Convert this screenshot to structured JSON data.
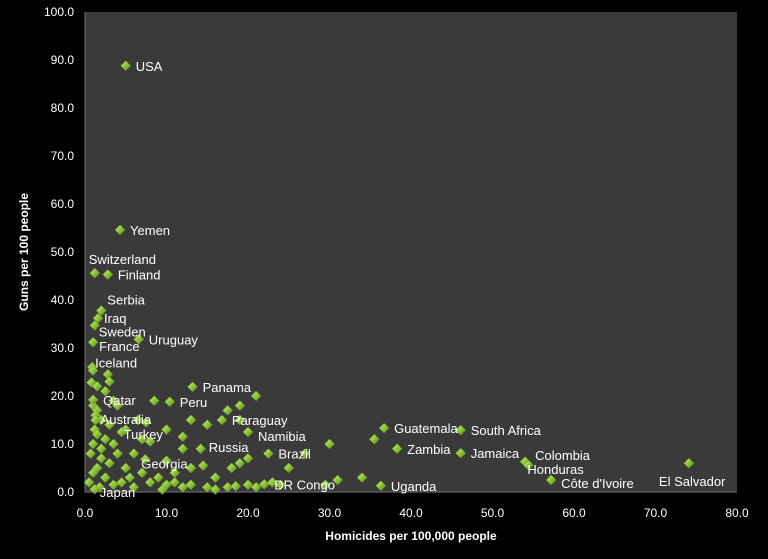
{
  "chart_data": {
    "type": "scatter",
    "title": "",
    "xlabel": "Homicides per 100,000 people",
    "ylabel": "Guns per 100 people",
    "xlim": [
      0,
      80
    ],
    "ylim": [
      0,
      100
    ],
    "xticks": [
      "0.0",
      "10.0",
      "20.0",
      "30.0",
      "40.0",
      "50.0",
      "60.0",
      "70.0",
      "80.0"
    ],
    "yticks": [
      "0.0",
      "10.0",
      "20.0",
      "30.0",
      "40.0",
      "50.0",
      "60.0",
      "70.0",
      "80.0",
      "90.0",
      "100.0"
    ],
    "grid": false,
    "colors": {
      "marker": "#8fc63a",
      "marker_dark": "#5a8a1a",
      "plot_bg": "#3a3a3a",
      "outer_bg": "#000000"
    },
    "labeled_points": [
      {
        "label": "USA",
        "x": 5.0,
        "y": 88.8
      },
      {
        "label": "Yemen",
        "x": 4.3,
        "y": 54.6
      },
      {
        "label": "Switzerland",
        "x": 1.2,
        "y": 45.6
      },
      {
        "label": "Finland",
        "x": 2.8,
        "y": 45.3
      },
      {
        "label": "Serbia",
        "x": 2.0,
        "y": 37.8
      },
      {
        "label": "Iraq",
        "x": 1.6,
        "y": 36.2
      },
      {
        "label": "Sweden",
        "x": 1.2,
        "y": 34.7
      },
      {
        "label": "France",
        "x": 1.0,
        "y": 31.2
      },
      {
        "label": "Uruguay",
        "x": 6.6,
        "y": 31.8
      },
      {
        "label": "Iceland",
        "x": 1.0,
        "y": 25.3
      },
      {
        "label": "Qatar",
        "x": 1.0,
        "y": 19.2
      },
      {
        "label": "Australia",
        "x": 1.3,
        "y": 15.0
      },
      {
        "label": "Turkey",
        "x": 4.5,
        "y": 12.5
      },
      {
        "label": "Panama",
        "x": 13.2,
        "y": 21.9
      },
      {
        "label": "Peru",
        "x": 10.4,
        "y": 18.8
      },
      {
        "label": "Paraguay",
        "x": 16.8,
        "y": 15.0
      },
      {
        "label": "Namibia",
        "x": 20.0,
        "y": 12.5
      },
      {
        "label": "Russia",
        "x": 14.2,
        "y": 9.0
      },
      {
        "label": "Georgia",
        "x": 7.4,
        "y": 6.8
      },
      {
        "label": "Brazil",
        "x": 22.5,
        "y": 8.0
      },
      {
        "label": "DR Congo",
        "x": 22.0,
        "y": 1.6
      },
      {
        "label": "Guatemala",
        "x": 36.7,
        "y": 13.3
      },
      {
        "label": "South Africa",
        "x": 46.1,
        "y": 12.9
      },
      {
        "label": "Zambia",
        "x": 38.3,
        "y": 9.0
      },
      {
        "label": "Jamaica",
        "x": 46.1,
        "y": 8.1
      },
      {
        "label": "Colombia",
        "x": 54.0,
        "y": 6.3
      },
      {
        "label": "Honduras",
        "x": 54.4,
        "y": 5.6
      },
      {
        "label": "Côte d'Ivoire",
        "x": 57.2,
        "y": 2.5
      },
      {
        "label": "El Salvador",
        "x": 74.1,
        "y": 6.0
      },
      {
        "label": "Uganda",
        "x": 36.3,
        "y": 1.3
      },
      {
        "label": "Japan",
        "x": 1.2,
        "y": 0.6
      }
    ],
    "other_points": [
      [
        0.9,
        26
      ],
      [
        0.8,
        22.8
      ],
      [
        1.5,
        22
      ],
      [
        2.8,
        24.5
      ],
      [
        3,
        23
      ],
      [
        2.5,
        21
      ],
      [
        3.5,
        19
      ],
      [
        4,
        18
      ],
      [
        8.5,
        19
      ],
      [
        1,
        18
      ],
      [
        1.5,
        17
      ],
      [
        1.3,
        16
      ],
      [
        2,
        15
      ],
      [
        3,
        14
      ],
      [
        5,
        13
      ],
      [
        7,
        11
      ],
      [
        1.2,
        13
      ],
      [
        1.5,
        12
      ],
      [
        2.5,
        11
      ],
      [
        1,
        10
      ],
      [
        3.5,
        10
      ],
      [
        8,
        10.5
      ],
      [
        12,
        9
      ],
      [
        10,
        6.5
      ],
      [
        6,
        8
      ],
      [
        4,
        8
      ],
      [
        2,
        7
      ],
      [
        3,
        6
      ],
      [
        1.5,
        5
      ],
      [
        5,
        5
      ],
      [
        7,
        4
      ],
      [
        9,
        3
      ],
      [
        11,
        4
      ],
      [
        13,
        5
      ],
      [
        14.5,
        5.5
      ],
      [
        16,
        3
      ],
      [
        18,
        5
      ],
      [
        19,
        6
      ],
      [
        20,
        7
      ],
      [
        12,
        1
      ],
      [
        13,
        1.5
      ],
      [
        15,
        1
      ],
      [
        16,
        0.5
      ],
      [
        17.5,
        1
      ],
      [
        18.5,
        1.2
      ],
      [
        20,
        1.5
      ],
      [
        21,
        1
      ],
      [
        23,
        2
      ],
      [
        24,
        1.5
      ],
      [
        25,
        5
      ],
      [
        19,
        15
      ],
      [
        17.5,
        17
      ],
      [
        19,
        18
      ],
      [
        21,
        20
      ],
      [
        12,
        11.5
      ],
      [
        10,
        13
      ],
      [
        13,
        15
      ],
      [
        15,
        14
      ],
      [
        7.5,
        14.5
      ],
      [
        6.5,
        15
      ],
      [
        30,
        10
      ],
      [
        31,
        2.5
      ],
      [
        29.5,
        1.5
      ],
      [
        34,
        3
      ],
      [
        35.5,
        11
      ],
      [
        27,
        8
      ],
      [
        4.5,
        2
      ],
      [
        6,
        1
      ],
      [
        8,
        2
      ],
      [
        10,
        1.5
      ],
      [
        2.5,
        3
      ],
      [
        3.5,
        1.5
      ],
      [
        0.5,
        2
      ],
      [
        0.7,
        8
      ],
      [
        1,
        4
      ],
      [
        2,
        9
      ],
      [
        5.5,
        3
      ],
      [
        9.5,
        0.5
      ],
      [
        11,
        2
      ],
      [
        1.8,
        1
      ]
    ]
  }
}
